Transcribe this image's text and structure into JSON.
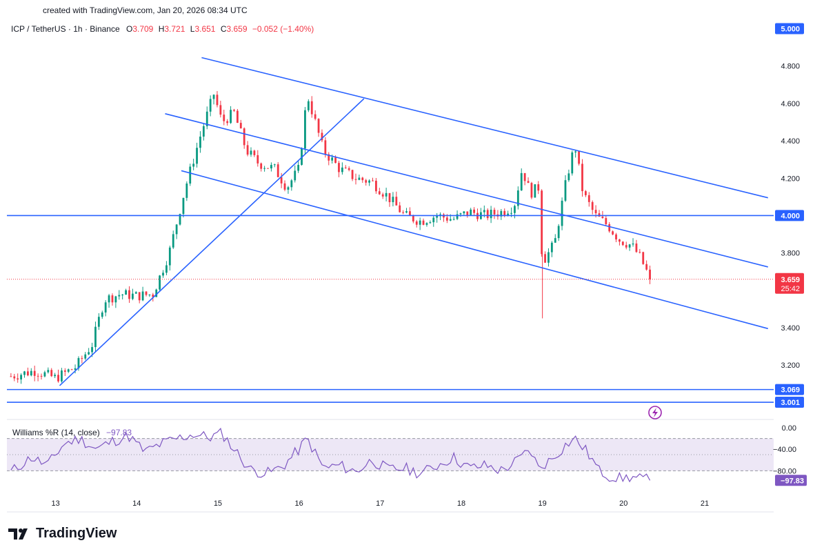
{
  "header": {
    "created": "created with TradingView.com, Jan 20, 2026 08:34 UTC"
  },
  "legend": {
    "symbol": "ICP / TetherUS · 1h · Binance",
    "o_label": "O",
    "o": "3.709",
    "h_label": "H",
    "h": "3.721",
    "l_label": "L",
    "l": "3.651",
    "c_label": "C",
    "c": "3.659",
    "change": "−0.052 (−1.40%)"
  },
  "price_axis": {
    "ticks": [
      "5.000",
      "4.800",
      "4.600",
      "4.400",
      "4.200",
      "4.000",
      "3.800",
      "3.400",
      "3.200",
      "3.069",
      "3.001"
    ],
    "current_price": "3.659",
    "countdown": "25:42"
  },
  "time_axis": {
    "ticks": [
      "13",
      "14",
      "15",
      "16",
      "17",
      "18",
      "19",
      "20",
      "21"
    ]
  },
  "indicator": {
    "name": "Williams %R (14, close)",
    "value": "−97.83",
    "ticks": [
      "0.00",
      "−40.00",
      "−80.00"
    ]
  },
  "brand": {
    "name": "TradingView"
  },
  "colors": {
    "up": "#089981",
    "down": "#f23645",
    "line": "#2962ff",
    "wr": "#7e57c2",
    "wr_band": "#ede7f6"
  },
  "chart_data": [
    {
      "type": "candlestick",
      "title": "ICP / TetherUS · 1h · Binance",
      "ylim": [
        2.92,
        5.05
      ],
      "xlim": [
        12.4,
        21.85
      ],
      "horizontal_levels": [
        4.0,
        3.069,
        3.001
      ],
      "trend_lines": [
        {
          "x": [
            14.8,
            21.78
          ],
          "y": [
            4.845,
            4.095
          ]
        },
        {
          "x": [
            14.35,
            21.78
          ],
          "y": [
            4.545,
            3.725
          ]
        },
        {
          "x": [
            14.55,
            21.78
          ],
          "y": [
            4.24,
            3.395
          ]
        },
        {
          "x": [
            13.05,
            16.8
          ],
          "y": [
            3.09,
            4.625
          ]
        }
      ],
      "series_approx": [
        [
          12.45,
          3.14
        ],
        [
          12.75,
          3.17
        ],
        [
          13.0,
          3.13
        ],
        [
          13.25,
          3.19
        ],
        [
          13.45,
          3.31
        ],
        [
          13.6,
          3.55
        ],
        [
          13.8,
          3.58
        ],
        [
          14.0,
          3.57
        ],
        [
          14.2,
          3.58
        ],
        [
          14.4,
          3.8
        ],
        [
          14.6,
          4.15
        ],
        [
          14.8,
          4.45
        ],
        [
          14.95,
          4.65
        ],
        [
          15.05,
          4.5
        ],
        [
          15.2,
          4.55
        ],
        [
          15.35,
          4.35
        ],
        [
          15.5,
          4.28
        ],
        [
          15.7,
          4.25
        ],
        [
          15.85,
          4.15
        ],
        [
          16.0,
          4.25
        ],
        [
          16.1,
          4.65
        ],
        [
          16.3,
          4.35
        ],
        [
          16.5,
          4.25
        ],
        [
          16.7,
          4.2
        ],
        [
          16.9,
          4.18
        ],
        [
          17.1,
          4.1
        ],
        [
          17.3,
          4.0
        ],
        [
          17.5,
          3.97
        ],
        [
          17.7,
          4.0
        ],
        [
          17.9,
          3.98
        ],
        [
          18.1,
          4.02
        ],
        [
          18.3,
          4.0
        ],
        [
          18.5,
          4.02
        ],
        [
          18.65,
          4.05
        ],
        [
          18.75,
          4.25
        ],
        [
          18.85,
          4.12
        ],
        [
          18.95,
          4.15
        ],
        [
          19.0,
          3.75
        ],
        [
          19.15,
          3.85
        ],
        [
          19.3,
          4.2
        ],
        [
          19.4,
          4.38
        ],
        [
          19.5,
          4.12
        ],
        [
          19.65,
          4.0
        ],
        [
          19.8,
          3.95
        ],
        [
          19.95,
          3.87
        ],
        [
          20.1,
          3.84
        ],
        [
          20.2,
          3.78
        ],
        [
          20.33,
          3.659
        ]
      ],
      "last": 3.659
    },
    {
      "type": "line",
      "title": "Williams %R (14, close)",
      "ylim": [
        -100,
        0
      ],
      "bands": [
        -20,
        -80
      ],
      "x": [
        12.45,
        12.7,
        12.9,
        13.1,
        13.3,
        13.5,
        13.7,
        13.9,
        14.1,
        14.3,
        14.5,
        14.7,
        14.9,
        15.05,
        15.2,
        15.4,
        15.6,
        15.8,
        16.0,
        16.1,
        16.3,
        16.5,
        16.7,
        16.9,
        17.1,
        17.3,
        17.5,
        17.7,
        17.9,
        18.1,
        18.3,
        18.5,
        18.7,
        18.85,
        18.95,
        19.1,
        19.3,
        19.4,
        19.55,
        19.7,
        19.9,
        20.1,
        20.33
      ],
      "y": [
        -82,
        -55,
        -70,
        -30,
        -20,
        -40,
        -25,
        -15,
        -45,
        -30,
        -20,
        -12,
        -18,
        -10,
        -40,
        -78,
        -85,
        -72,
        -40,
        -20,
        -75,
        -70,
        -82,
        -60,
        -78,
        -75,
        -85,
        -70,
        -55,
        -75,
        -70,
        -80,
        -60,
        -40,
        -75,
        -60,
        -30,
        -20,
        -45,
        -80,
        -95,
        -92,
        -97.83
      ]
    }
  ]
}
